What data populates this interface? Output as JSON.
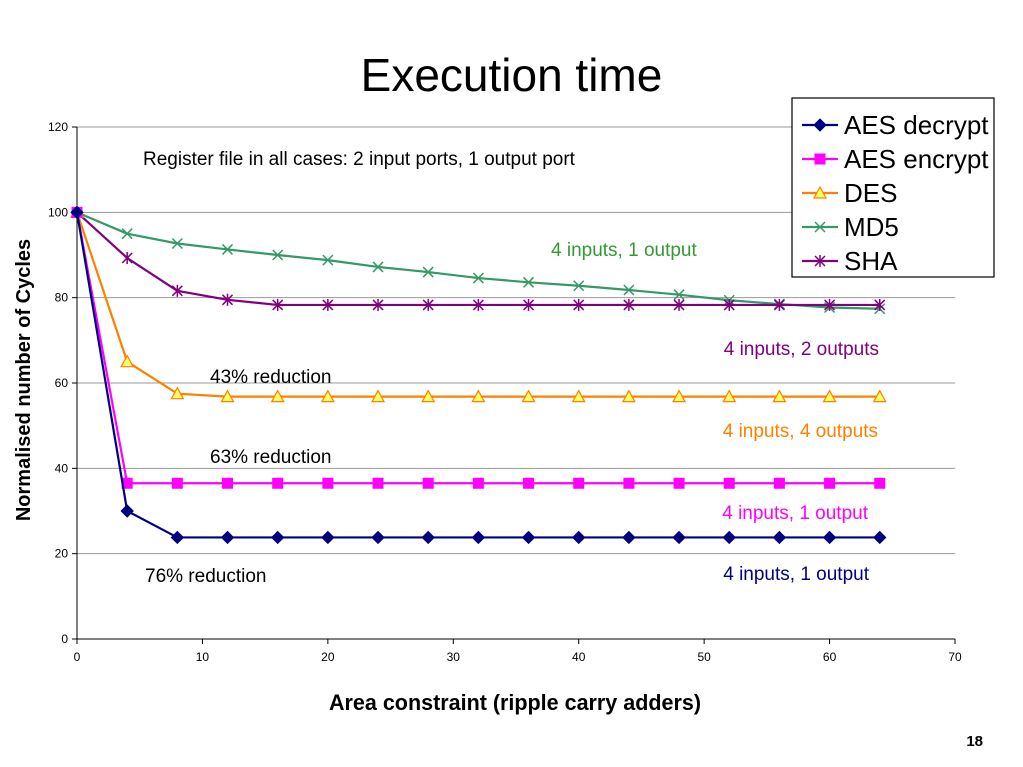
{
  "slide": {
    "title": "Execution time",
    "page_number": "18"
  },
  "chart_data": {
    "type": "line",
    "title": "",
    "xlabel": "Area constraint (ripple carry adders)",
    "ylabel": "Normalised number of Cycles",
    "xlim": [
      0,
      70
    ],
    "ylim": [
      0,
      120
    ],
    "xticks": [
      0,
      10,
      20,
      30,
      40,
      50,
      60,
      70
    ],
    "yticks": [
      0,
      20,
      40,
      60,
      80,
      100,
      120
    ],
    "grid": "horizontal",
    "legend_position": "top-right",
    "x": [
      0,
      4,
      8,
      12,
      16,
      20,
      24,
      28,
      32,
      36,
      40,
      44,
      48,
      52,
      56,
      60,
      64
    ],
    "series": [
      {
        "name": "AES decrypt",
        "color": "#000080",
        "marker": "diamond",
        "values": [
          100,
          30,
          23.8,
          23.8,
          23.8,
          23.8,
          23.8,
          23.8,
          23.8,
          23.8,
          23.8,
          23.8,
          23.8,
          23.8,
          23.8,
          23.8,
          23.8
        ]
      },
      {
        "name": "AES encrypt",
        "color": "#FF00FF",
        "marker": "square",
        "values": [
          100,
          36.5,
          36.5,
          36.5,
          36.5,
          36.5,
          36.5,
          36.5,
          36.5,
          36.5,
          36.5,
          36.5,
          36.5,
          36.5,
          36.5,
          36.5,
          36.5
        ]
      },
      {
        "name": "DES",
        "color": "#FF7F00",
        "marker": "triangle",
        "marker_fill": "#FFFF66",
        "values": [
          100,
          65,
          57.5,
          56.8,
          56.8,
          56.8,
          56.8,
          56.8,
          56.8,
          56.8,
          56.8,
          56.8,
          56.8,
          56.8,
          56.8,
          56.8,
          56.8
        ]
      },
      {
        "name": "MD5",
        "color": "#339966",
        "marker": "x",
        "values": [
          100,
          95,
          92.7,
          91.3,
          90,
          88.8,
          87.2,
          86,
          84.6,
          83.6,
          82.8,
          81.8,
          80.7,
          79.4,
          78.5,
          77.7,
          77.4
        ]
      },
      {
        "name": "SHA",
        "color": "#800080",
        "marker": "star",
        "values": [
          100,
          89.3,
          81.6,
          79.5,
          78.3,
          78.3,
          78.3,
          78.3,
          78.3,
          78.3,
          78.3,
          78.3,
          78.3,
          78.3,
          78.3,
          78.3,
          78.3
        ]
      }
    ],
    "annotations": [
      {
        "text": "Register file in all cases: 2 input ports, 1 output port",
        "color": "#000000"
      },
      {
        "text": "4 inputs, 1 output",
        "color": "#339933"
      },
      {
        "text": "4 inputs, 2 outputs",
        "color": "#800080"
      },
      {
        "text": "43% reduction",
        "color": "#000000"
      },
      {
        "text": "4 inputs, 4 outputs",
        "color": "#FF7F00"
      },
      {
        "text": "63% reduction",
        "color": "#000000"
      },
      {
        "text": "4 inputs, 1 output",
        "color": "#FF00FF"
      },
      {
        "text": "4 inputs, 1 output",
        "color": "#000080"
      },
      {
        "text": "76% reduction",
        "color": "#000000"
      }
    ]
  }
}
